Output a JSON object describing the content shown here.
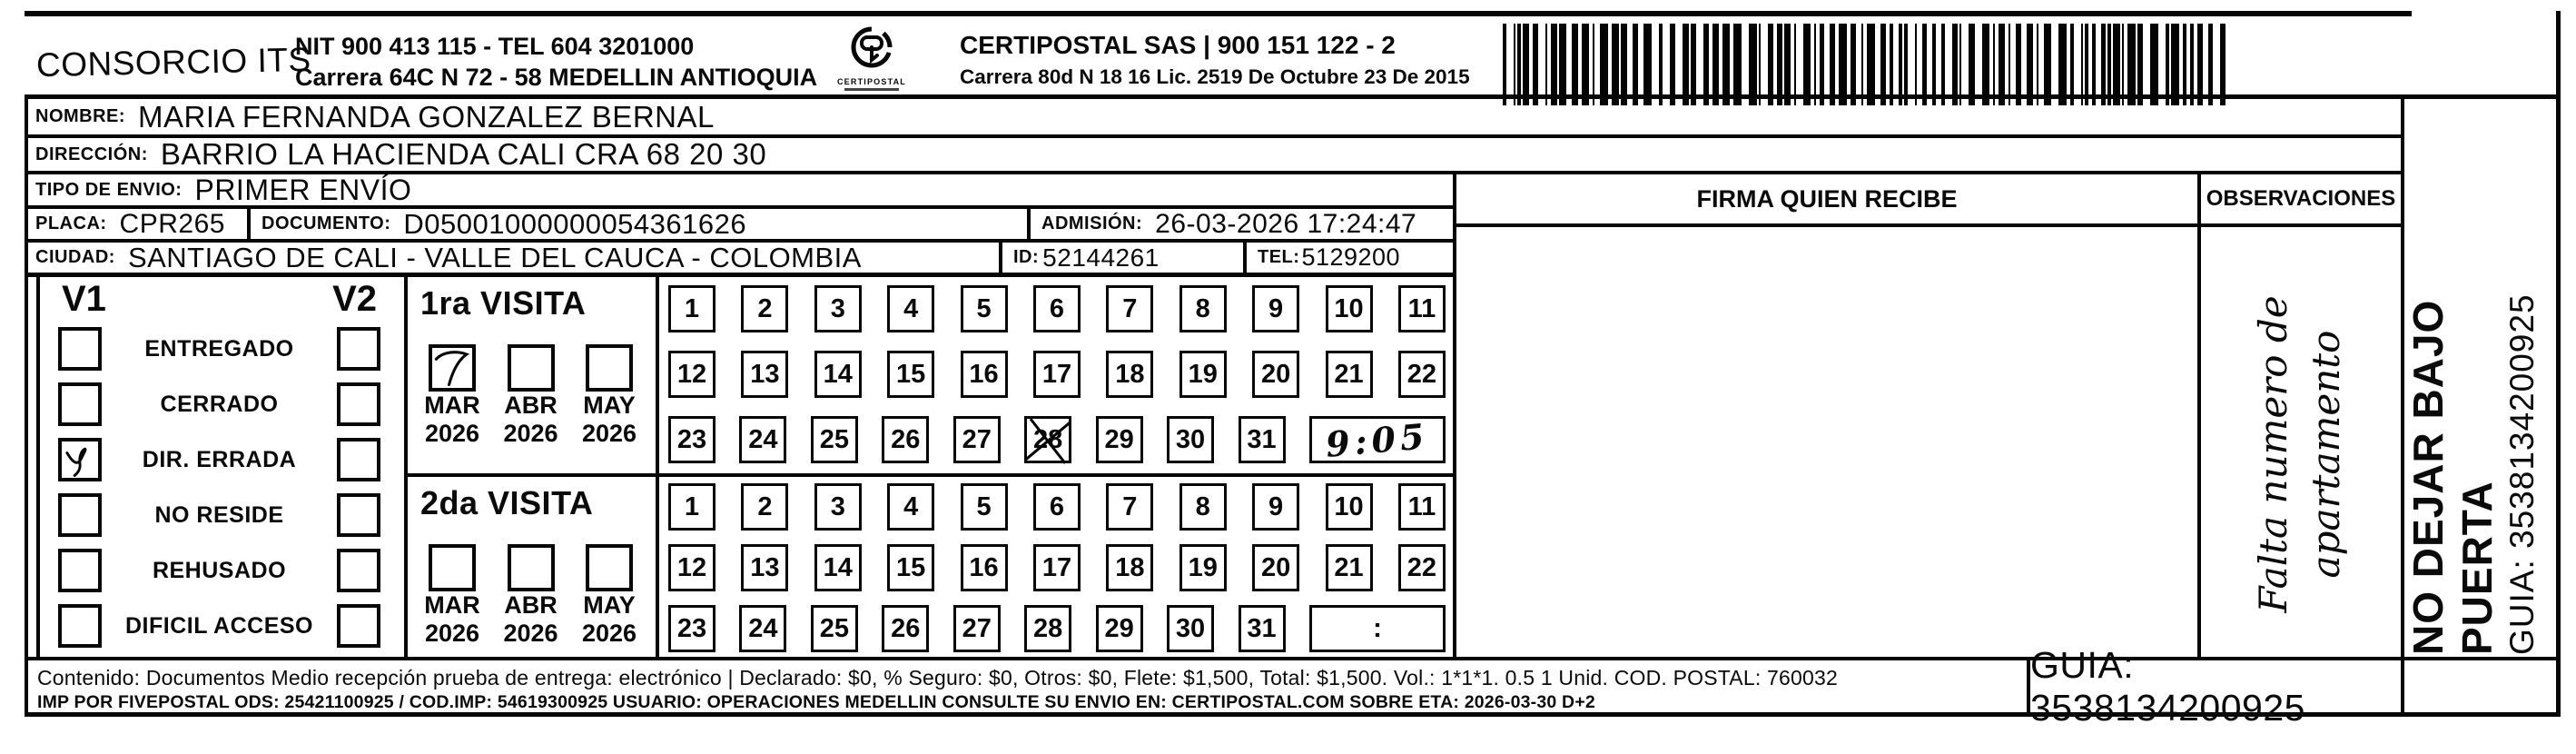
{
  "header": {
    "company": "CONSORCIO ITS",
    "nit_line": "NIT 900 413 115 - TEL 604 3201000",
    "address_line": "Carrera 64C N 72 - 58 MEDELLIN ANTIOQUIA",
    "logo_text": "CERTIPOSTAL",
    "certipostal_line": "CERTIPOSTAL SAS | 900 151 122 - 2",
    "certipostal_address": "Carrera 80d N 18 16  Lic. 2519 De Octubre 23 De 2015"
  },
  "shipment": {
    "nombre_label": "NOMBRE:",
    "nombre": "MARIA FERNANDA GONZALEZ BERNAL",
    "direccion_label": "DIRECCIÓN:",
    "direccion": "BARRIO LA HACIENDA CALI CRA 68 20 30",
    "tipo_envio_label": "TIPO DE ENVIO:",
    "tipo_envio": "PRIMER ENVÍO",
    "placa_label": "PLACA:",
    "placa": "CPR265",
    "documento_label": "DOCUMENTO:",
    "documento": "D05001000000054361626",
    "admision_label": "ADMISIÓN:",
    "admision": "26-03-2026 17:24:47",
    "ciudad_label": "CIUDAD:",
    "ciudad": "SANTIAGO DE CALI - VALLE DEL CAUCA - COLOMBIA",
    "id_label": "ID:",
    "id": "52144261",
    "tel_label": "TEL:",
    "tel": "5129200"
  },
  "status": {
    "v1_label": "V1",
    "v2_label": "V2",
    "options": [
      {
        "label": "ENTREGADO",
        "v1_checked": false,
        "v2_checked": false
      },
      {
        "label": "CERRADO",
        "v1_checked": false,
        "v2_checked": false
      },
      {
        "label": "DIR. ERRADA",
        "v1_checked": true,
        "v2_checked": false
      },
      {
        "label": "NO RESIDE",
        "v1_checked": false,
        "v2_checked": false
      },
      {
        "label": "REHUSADO",
        "v1_checked": false,
        "v2_checked": false
      },
      {
        "label": "DIFICIL ACCESO",
        "v1_checked": false,
        "v2_checked": false
      }
    ]
  },
  "visita1": {
    "title": "1ra VISITA",
    "months": [
      {
        "label": "MAR",
        "year": "2026",
        "checked": true
      },
      {
        "label": "ABR",
        "year": "2026",
        "checked": false
      },
      {
        "label": "MAY",
        "year": "2026",
        "checked": false
      }
    ],
    "days_rows": [
      [
        "1",
        "2",
        "3",
        "4",
        "5",
        "6",
        "7",
        "8",
        "9",
        "10",
        "11"
      ],
      [
        "12",
        "13",
        "14",
        "15",
        "16",
        "17",
        "18",
        "19",
        "20",
        "21",
        "22"
      ],
      [
        "23",
        "24",
        "25",
        "26",
        "27",
        "28",
        "29",
        "30",
        "31"
      ]
    ],
    "crossed_day": "28",
    "time_handwritten": "9:05"
  },
  "visita2": {
    "title": "2da VISITA",
    "months": [
      {
        "label": "MAR",
        "year": "2026",
        "checked": false
      },
      {
        "label": "ABR",
        "year": "2026",
        "checked": false
      },
      {
        "label": "MAY",
        "year": "2026",
        "checked": false
      }
    ],
    "days_rows": [
      [
        "1",
        "2",
        "3",
        "4",
        "5",
        "6",
        "7",
        "8",
        "9",
        "10",
        "11"
      ],
      [
        "12",
        "13",
        "14",
        "15",
        "16",
        "17",
        "18",
        "19",
        "20",
        "21",
        "22"
      ],
      [
        "23",
        "24",
        "25",
        "26",
        "27",
        "28",
        "29",
        "30",
        "31"
      ]
    ],
    "time_cell": ":"
  },
  "firma": {
    "header": "FIRMA QUIEN RECIBE"
  },
  "observaciones": {
    "header": "OBSERVACIONES",
    "handwriting_line1": "Falta numero de",
    "handwriting_line2": "apartamento"
  },
  "side_column": {
    "line1": "NO DEJAR BAJO PUERTA",
    "line2": "GUIA: 3538134200925"
  },
  "footer": {
    "line1": "Contenido: Documentos Medio recepción prueba de entrega: electrónico | Declarado: $0, % Seguro: $0, Otros: $0, Flete: $1,500, Total: $1,500. Vol.: 1*1*1. 0.5  1 Unid. COD. POSTAL: 760032",
    "line2": "IMP POR FIVEPOSTAL ODS: 25421100925 / COD.IMP: 54619300925 USUARIO: OPERACIONES MEDELLIN CONSULTE SU ENVIO EN: CERTIPOSTAL.COM SOBRE ETA: 2026-03-30 D+2",
    "guia": "GUIA: 3538134200925"
  }
}
